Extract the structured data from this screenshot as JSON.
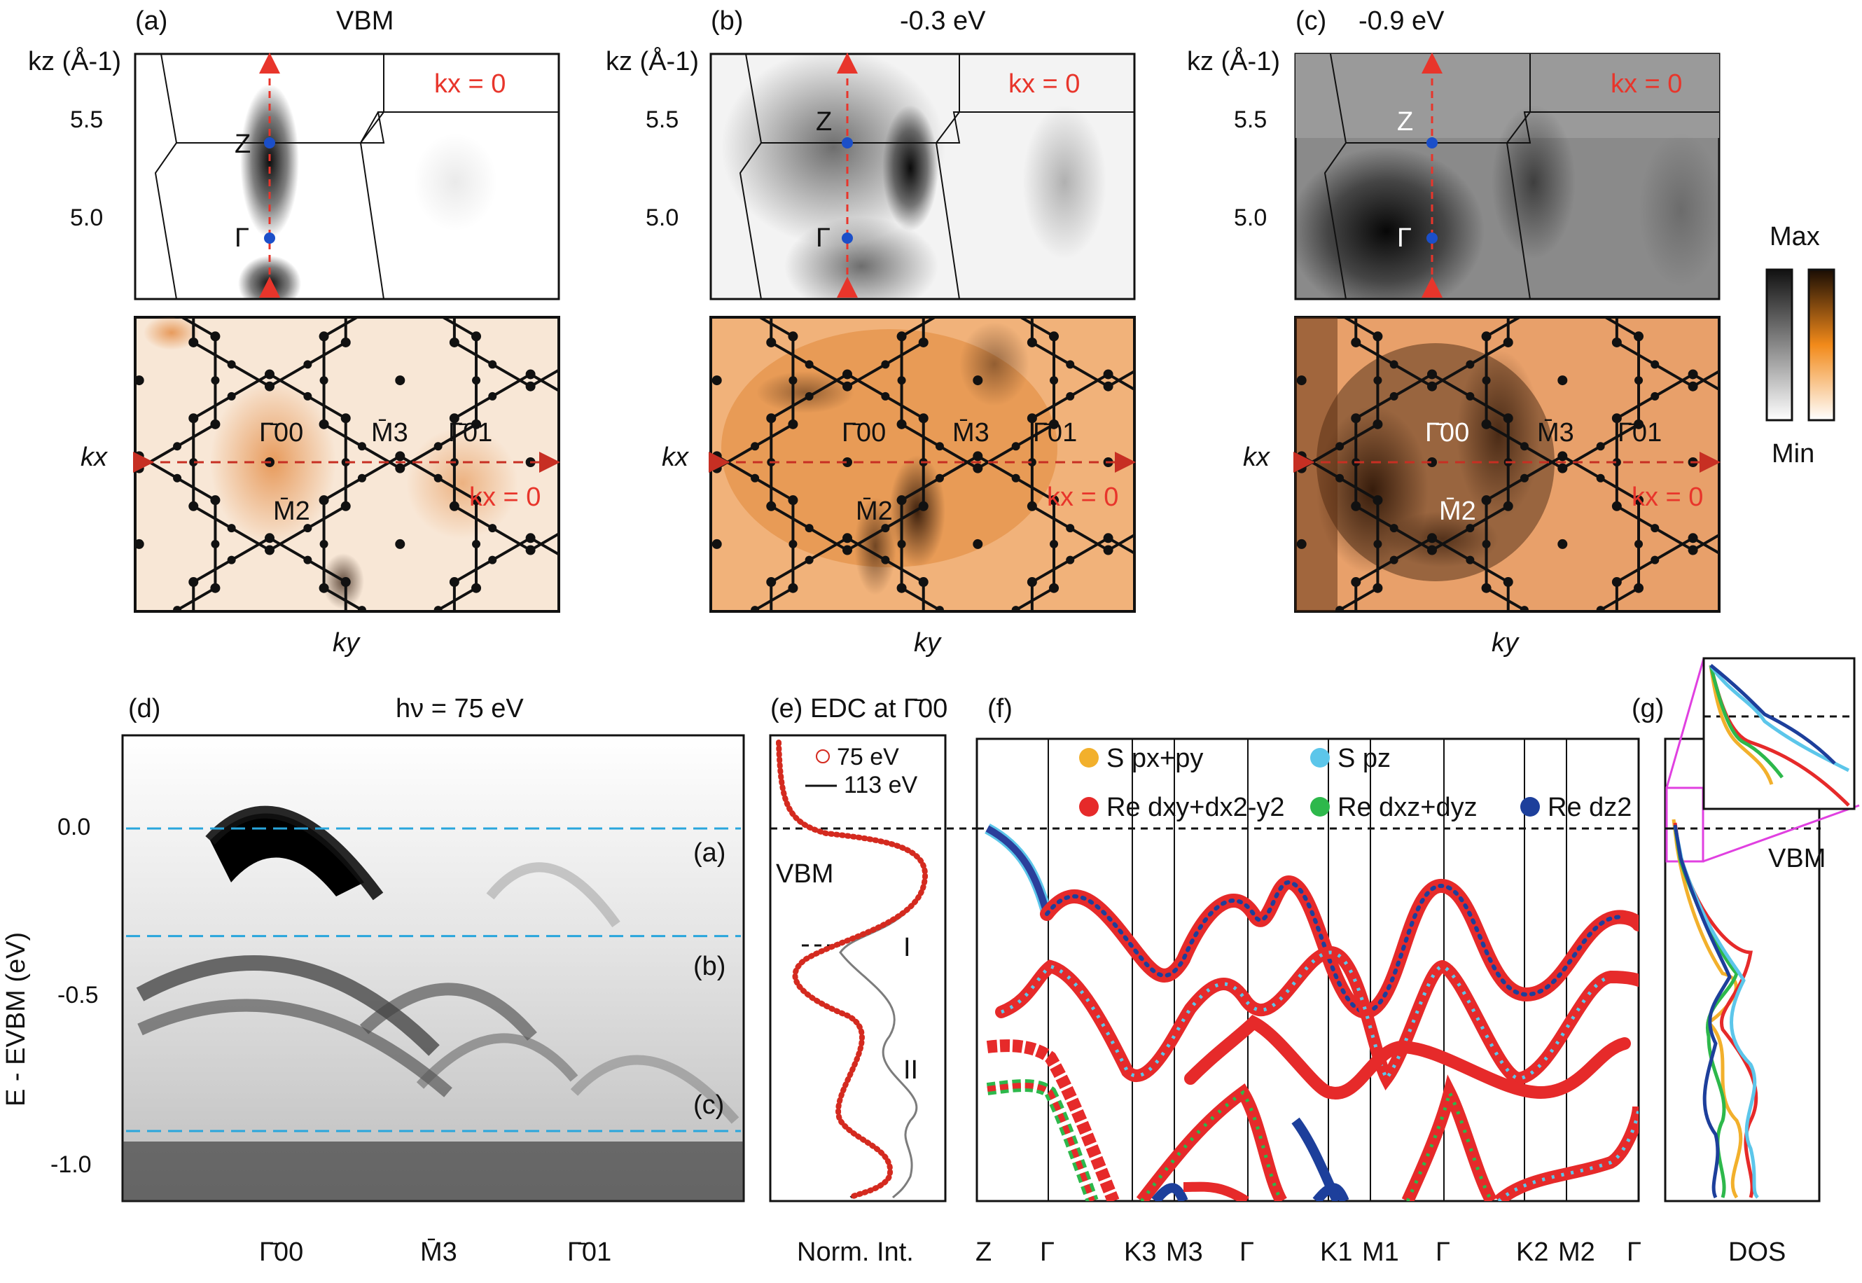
{
  "figure": {
    "panels": {
      "a": {
        "letter": "(a)",
        "title": "VBM"
      },
      "b": {
        "letter": "(b)",
        "title": "-0.3 eV"
      },
      "c": {
        "letter": "(c)",
        "title": "-0.9 eV"
      },
      "d": {
        "letter": "(d)",
        "title": "hν = 75 eV"
      },
      "e": {
        "letter": "(e)",
        "title": "EDC at Γ̄00"
      },
      "f": {
        "letter": "(f)"
      },
      "g": {
        "letter": "(g)"
      }
    },
    "kz_axis": {
      "label": "kz (Å-1)",
      "ticks": [
        "5.5",
        "5.0"
      ]
    },
    "kx_label": "kx",
    "ky_label": "ky",
    "kx_zero": "kx = 0",
    "points": {
      "Z": "Z",
      "Gamma": "Γ",
      "G00": "Γ̄00",
      "G01": "Γ̄01",
      "M2": "M̄2",
      "M3": "M̄3"
    },
    "colorbar": {
      "max": "Max",
      "min": "Min",
      "gray_color": "#1a1a1a",
      "orange_color": "#f28a1a"
    },
    "panel_d": {
      "ylabel": "E - EVBM (eV)",
      "yticks": [
        "0.0",
        "-0.5",
        "-1.0"
      ],
      "cut_labels": [
        "(a)",
        "(b)",
        "(c)"
      ],
      "cut_energies": [
        0.0,
        -0.32,
        -0.9
      ],
      "xticks": [
        "Γ̄00",
        "M̄3",
        "Γ̄01"
      ],
      "line_color": "#29a6dc"
    },
    "panel_e": {
      "legend": [
        "75 eV",
        "113 eV"
      ],
      "annotations": [
        "VBM",
        "I",
        "II"
      ],
      "xlabel": "Norm. Int.",
      "color_75": "#d42a1f",
      "color_113": "#111111"
    },
    "panel_f": {
      "legend": [
        {
          "label": "S px+py",
          "color": "#f2b02c"
        },
        {
          "label": "S pz",
          "color": "#5cc6ea"
        },
        {
          "label": "Re dxy+dx2-y2",
          "color": "#e62a2a"
        },
        {
          "label": "Re dxz+dyz",
          "color": "#2db84b"
        },
        {
          "label": "Re dz2",
          "color": "#1d3f9b"
        }
      ],
      "kpath": [
        "Z",
        "Γ",
        "K3",
        "M3",
        "Γ",
        "K1",
        "M1",
        "Γ",
        "K2",
        "M2",
        "Γ"
      ]
    },
    "panel_g": {
      "xlabel": "DOS",
      "vbm": "VBM",
      "inset_color": "#e040e0"
    }
  }
}
